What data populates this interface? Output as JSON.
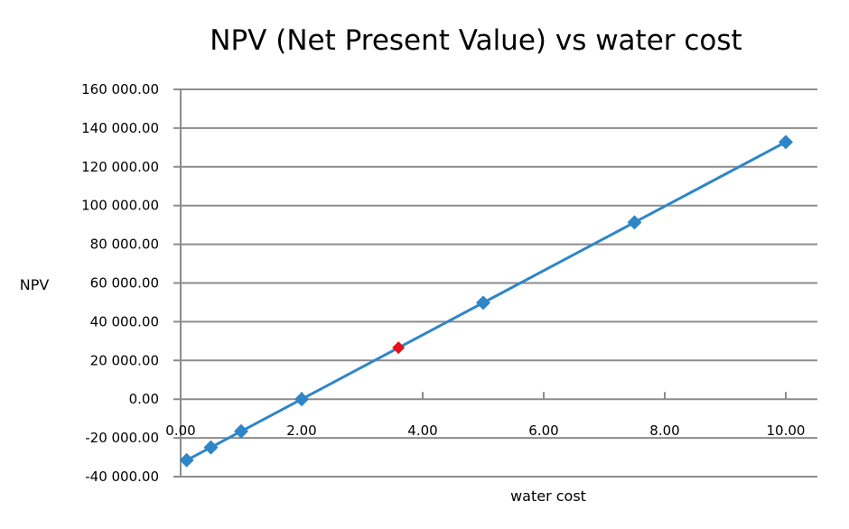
{
  "chart_data": {
    "type": "scatter",
    "title": "NPV (Net Present Value) vs water cost",
    "xlabel": "water cost",
    "ylabel": "NPV",
    "xlim": [
      0,
      10.5
    ],
    "ylim": [
      -40000,
      160000
    ],
    "grid": "horizontal",
    "x_ticks": [
      0,
      2,
      4,
      6,
      8,
      10
    ],
    "x_tick_labels": [
      "0.00",
      "2.00",
      "4.00",
      "6.00",
      "8.00",
      "10.00"
    ],
    "y_ticks": [
      -40000,
      -20000,
      0,
      20000,
      40000,
      60000,
      80000,
      100000,
      120000,
      140000,
      160000
    ],
    "y_tick_labels": [
      "-40 000.00",
      "-20 000.00",
      "0.00",
      "20 000.00",
      "40 000.00",
      "60 000.00",
      "80 000.00",
      "100 000.00",
      "120 000.00",
      "140 000.00",
      "160 000.00"
    ],
    "series": [
      {
        "name": "NPV",
        "color": "#2e86c8",
        "x": [
          0.1,
          0.5,
          1,
          2,
          5,
          7.5,
          10
        ],
        "y": [
          -31500,
          -24900,
          -16600,
          0,
          49800,
          91300,
          132800
        ]
      }
    ],
    "highlight": {
      "x": 3.6,
      "y": 26600,
      "color": "#e8101a"
    }
  }
}
